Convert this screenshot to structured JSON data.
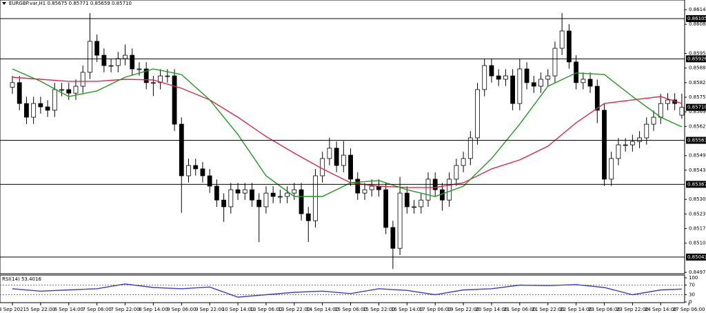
{
  "chart_data": {
    "type": "candlestick",
    "title": "EURGBP.var,H1  0.85675 0.85771 0.85659 0.85710",
    "open": [
      0.858,
      0.8582,
      0.85727,
      0.85666,
      0.85727,
      0.85712,
      0.85697,
      0.85789,
      0.85789,
      0.85773,
      0.85804,
      0.85866,
      0.86004,
      0.85942,
      0.85896,
      0.85896,
      0.85927,
      0.85942,
      0.85881,
      0.85881,
      0.8582,
      0.8582,
      0.8585,
      0.8585,
      0.85635,
      0.85405,
      0.85451,
      0.85436,
      0.85405,
      0.85359,
      0.85297,
      0.85267,
      0.85343,
      0.85328,
      0.85343,
      0.85297,
      0.85267,
      0.85328,
      0.85313,
      0.85313,
      0.85328,
      0.85343,
      0.85236,
      0.85205,
      0.85405,
      0.85482,
      0.85528,
      0.85451,
      0.85497,
      0.8539,
      0.85328,
      0.85343,
      0.85359,
      0.85343,
      0.85175,
      0.85082,
      0.85328,
      0.85267,
      0.85267,
      0.85297,
      0.8539,
      0.85343,
      0.85297,
      0.8539,
      0.85451,
      0.85482,
      0.85574,
      0.85789,
      0.85896,
      0.8585,
      0.85835,
      0.8585,
      0.85727,
      0.85881,
      0.8582,
      0.85804,
      0.85835,
      0.8585,
      0.85973,
      0.8605,
      0.85912,
      0.8582,
      0.85835,
      0.85804,
      0.85697,
      0.8539,
      0.85482,
      0.85543,
      0.85543,
      0.85558,
      0.85574,
      0.85635,
      0.85666,
      0.85727,
      0.85743,
      0.85675
    ],
    "high": [
      0.8585,
      0.8585,
      0.85757,
      0.85757,
      0.85757,
      0.85742,
      0.85819,
      0.85819,
      0.85819,
      0.85834,
      0.85896,
      0.8613,
      0.86034,
      0.85972,
      0.85926,
      0.85957,
      0.8599,
      0.85972,
      0.85911,
      0.85911,
      0.8585,
      0.8588,
      0.8588,
      0.8588,
      0.85665,
      0.85481,
      0.85481,
      0.85466,
      0.85435,
      0.85389,
      0.85327,
      0.85373,
      0.85373,
      0.85373,
      0.85373,
      0.85327,
      0.85358,
      0.85358,
      0.85343,
      0.85358,
      0.85373,
      0.85373,
      0.85266,
      0.85435,
      0.85512,
      0.85575,
      0.85558,
      0.8556,
      0.85527,
      0.8542,
      0.85373,
      0.85389,
      0.85389,
      0.85373,
      0.85205,
      0.854,
      0.85358,
      0.85297,
      0.85327,
      0.8542,
      0.8542,
      0.85373,
      0.8542,
      0.85481,
      0.85512,
      0.85604,
      0.85819,
      0.85926,
      0.85926,
      0.8588,
      0.8588,
      0.8588,
      0.85926,
      0.85911,
      0.8585,
      0.85865,
      0.8588,
      0.86003,
      0.8613,
      0.8608,
      0.85942,
      0.85865,
      0.85865,
      0.85834,
      0.85727,
      0.85512,
      0.85573,
      0.85573,
      0.85588,
      0.85604,
      0.85665,
      0.85696,
      0.8577,
      0.85773,
      0.85773,
      0.85771
    ],
    "low": [
      0.8577,
      0.85697,
      0.85636,
      0.85636,
      0.85682,
      0.85667,
      0.85667,
      0.85759,
      0.85743,
      0.85743,
      0.85774,
      0.85836,
      0.85912,
      0.85866,
      0.85866,
      0.85866,
      0.85897,
      0.85851,
      0.85851,
      0.8579,
      0.8576,
      0.8579,
      0.8582,
      0.85605,
      0.8524,
      0.85375,
      0.85406,
      0.85375,
      0.85329,
      0.85267,
      0.852,
      0.85237,
      0.85298,
      0.85298,
      0.85267,
      0.8511,
      0.85237,
      0.85283,
      0.85283,
      0.85283,
      0.85298,
      0.85206,
      0.8511,
      0.85175,
      0.85375,
      0.85452,
      0.85421,
      0.85421,
      0.8536,
      0.85298,
      0.85298,
      0.85313,
      0.85313,
      0.85145,
      0.8499,
      0.85052,
      0.85237,
      0.85237,
      0.85237,
      0.85267,
      0.85313,
      0.8525,
      0.85267,
      0.8536,
      0.85421,
      0.85452,
      0.85544,
      0.85759,
      0.8582,
      0.85805,
      0.85805,
      0.85697,
      0.85697,
      0.8579,
      0.85774,
      0.85774,
      0.85805,
      0.8582,
      0.85943,
      0.85882,
      0.8579,
      0.8579,
      0.85774,
      0.8564,
      0.8536,
      0.8536,
      0.85452,
      0.85513,
      0.85513,
      0.85528,
      0.85544,
      0.85605,
      0.85636,
      0.85697,
      0.85697,
      0.85659
    ],
    "close": [
      0.8582,
      0.85727,
      0.85666,
      0.85727,
      0.85712,
      0.85697,
      0.85789,
      0.85789,
      0.85773,
      0.85804,
      0.85866,
      0.86004,
      0.85942,
      0.85896,
      0.85896,
      0.85927,
      0.85942,
      0.85881,
      0.85881,
      0.8582,
      0.8582,
      0.8585,
      0.8585,
      0.85635,
      0.85405,
      0.85451,
      0.85436,
      0.85405,
      0.85359,
      0.85297,
      0.85267,
      0.85343,
      0.85328,
      0.85343,
      0.85297,
      0.85267,
      0.85328,
      0.85313,
      0.85313,
      0.85328,
      0.85343,
      0.85236,
      0.85205,
      0.85405,
      0.85482,
      0.85528,
      0.85451,
      0.85497,
      0.8539,
      0.85328,
      0.85343,
      0.85359,
      0.85343,
      0.85175,
      0.85082,
      0.85328,
      0.85267,
      0.85267,
      0.85297,
      0.8539,
      0.85343,
      0.85297,
      0.8539,
      0.85451,
      0.85482,
      0.85574,
      0.85789,
      0.85896,
      0.8585,
      0.85835,
      0.8585,
      0.85727,
      0.85881,
      0.8582,
      0.85804,
      0.85835,
      0.8585,
      0.85973,
      0.8605,
      0.85912,
      0.8582,
      0.85835,
      0.85804,
      0.85697,
      0.8539,
      0.85482,
      0.85543,
      0.85543,
      0.85558,
      0.85574,
      0.85635,
      0.85666,
      0.85727,
      0.85743,
      0.85727,
      0.8571
    ],
    "up_color": "#ffffff",
    "down_color": "#000000",
    "wick_color": "#000000",
    "xlim": [
      -1.76,
      95.4
    ],
    "xticks": [
      {
        "value": 0,
        "label": "3 Sep 2021"
      },
      {
        "value": 4,
        "label": "5 Sep 22:00"
      },
      {
        "value": 8,
        "label": "6 Sep 14:00"
      },
      {
        "value": 12,
        "label": "7 Sep 06:00"
      },
      {
        "value": 16,
        "label": "7 Sep 22:00"
      },
      {
        "value": 20,
        "label": "8 Sep 14:00"
      },
      {
        "value": 24,
        "label": "9 Sep 06:00"
      },
      {
        "value": 28,
        "label": "9 Sep 22:00"
      },
      {
        "value": 32,
        "label": "10 Sep 14:00"
      },
      {
        "value": 36,
        "label": "13 Sep 06:00"
      },
      {
        "value": 40,
        "label": "13 Sep 22:00"
      },
      {
        "value": 44,
        "label": "14 Sep 14:00"
      },
      {
        "value": 48,
        "label": "15 Sep 06:00"
      },
      {
        "value": 52,
        "label": "15 Sep 22:00"
      },
      {
        "value": 56,
        "label": "16 Sep 14:00"
      },
      {
        "value": 60,
        "label": "17 Sep 06:00"
      },
      {
        "value": 64,
        "label": "19 Sep 22:00"
      },
      {
        "value": 68,
        "label": "20 Sep 14:00"
      },
      {
        "value": 72,
        "label": "21 Sep 06:00"
      },
      {
        "value": 76,
        "label": "21 Sep 22:00"
      },
      {
        "value": 80,
        "label": "22 Sep 14:00"
      },
      {
        "value": 84,
        "label": "23 Sep 06:00"
      },
      {
        "value": 88,
        "label": "23 Sep 22:00"
      },
      {
        "value": 92,
        "label": "24 Sep 14:00"
      },
      {
        "value": 96,
        "label": "27 Sep 06:00"
      }
    ],
    "ylim": [
      0.84969,
      0.86188
    ],
    "yticks": [
      0.86145,
      {
        "value": 0.8608,
        "label": "0.86080"
      },
      {
        "value": 0.8595,
        "label": "0.85950"
      },
      0.85885,
      {
        "value": 0.8582,
        "label": "0.85820"
      },
      0.85755,
      {
        "value": 0.8569,
        "label": "0.85690"
      },
      0.85625,
      0.85495,
      {
        "value": 0.8543,
        "label": "0.85430"
      },
      {
        "value": 0.853,
        "label": "0.85300"
      },
      0.85235,
      {
        "value": 0.8517,
        "label": "0.85170"
      },
      0.85105,
      0.84975
    ],
    "levels": [
      0.86105,
      0.85926,
      0.85563,
      0.85367,
      0.85043
    ],
    "level_color": "#000000",
    "current_price": {
      "value": 0.8571,
      "label": "0.85710"
    },
    "moving_averages": [
      {
        "color": "#e0284f",
        "x": [
          0,
          4,
          8,
          12,
          16,
          20,
          24,
          28,
          32,
          36,
          40,
          44,
          48,
          52,
          56,
          60,
          64,
          68,
          72,
          76,
          80,
          84,
          88,
          92,
          95
        ],
        "values": [
          0.85844,
          0.85835,
          0.85826,
          0.85826,
          0.85835,
          0.85832,
          0.85795,
          0.85743,
          0.85666,
          0.8558,
          0.85506,
          0.85436,
          0.85374,
          0.85359,
          0.85353,
          0.85353,
          0.85374,
          0.85436,
          0.85476,
          0.85537,
          0.85641,
          0.85727,
          0.85743,
          0.85758,
          0.85727
        ]
      },
      {
        "color": "#1f9a1f",
        "x": [
          0,
          4,
          8,
          12,
          16,
          20,
          24,
          28,
          32,
          36,
          40,
          44,
          48,
          52,
          56,
          60,
          64,
          68,
          72,
          76,
          80,
          84,
          88,
          92,
          95
        ],
        "values": [
          0.85881,
          0.85826,
          0.85758,
          0.85783,
          0.85844,
          0.85881,
          0.85856,
          0.85743,
          0.85589,
          0.85405,
          0.85313,
          0.85313,
          0.85374,
          0.85384,
          0.85343,
          0.85313,
          0.85359,
          0.85482,
          0.85635,
          0.85804,
          0.85863,
          0.85856,
          0.85758,
          0.85666,
          0.85623
        ]
      }
    ],
    "rsi": {
      "title": "RSI(14) 53.4016",
      "color": "#3b3bd6",
      "x": [
        0,
        4,
        8,
        12,
        16,
        20,
        24,
        28,
        32,
        36,
        40,
        44,
        48,
        52,
        56,
        60,
        64,
        68,
        72,
        76,
        80,
        84,
        88,
        92,
        95
      ],
      "values": [
        55,
        45,
        50,
        55,
        75,
        60,
        55,
        62,
        20,
        30,
        40,
        45,
        35,
        55,
        48,
        30,
        50,
        55,
        70,
        68,
        72,
        60,
        30,
        50,
        53.4016
      ],
      "ylim": [
        0,
        100
      ],
      "yticks": [
        100,
        70,
        30,
        0
      ],
      "levels": [
        70,
        30
      ]
    }
  }
}
